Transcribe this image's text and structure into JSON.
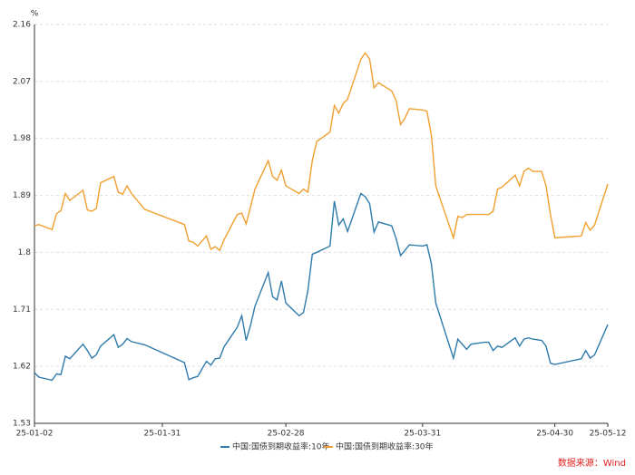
{
  "chart_data": {
    "type": "line",
    "y_label": "%",
    "source": "数据来源：Wind",
    "x": [
      "25-01-02",
      "25-01-03",
      "25-01-06",
      "25-01-07",
      "25-01-08",
      "25-01-09",
      "25-01-10",
      "25-01-13",
      "25-01-14",
      "25-01-15",
      "25-01-16",
      "25-01-17",
      "25-01-20",
      "25-01-21",
      "25-01-22",
      "25-01-23",
      "25-01-24",
      "25-01-27",
      "25-02-05",
      "25-02-06",
      "25-02-07",
      "25-02-08",
      "25-02-10",
      "25-02-11",
      "25-02-12",
      "25-02-13",
      "25-02-14",
      "25-02-17",
      "25-02-18",
      "25-02-19",
      "25-02-20",
      "25-02-21",
      "25-02-24",
      "25-02-25",
      "25-02-26",
      "25-02-27",
      "25-02-28",
      "25-03-03",
      "25-03-04",
      "25-03-05",
      "25-03-06",
      "25-03-07",
      "25-03-10",
      "25-03-11",
      "25-03-12",
      "25-03-13",
      "25-03-14",
      "25-03-17",
      "25-03-18",
      "25-03-19",
      "25-03-20",
      "25-03-21",
      "25-03-24",
      "25-03-25",
      "25-03-26",
      "25-03-27",
      "25-03-28",
      "25-03-31",
      "25-04-01",
      "25-04-02",
      "25-04-03",
      "25-04-07",
      "25-04-08",
      "25-04-09",
      "25-04-10",
      "25-04-11",
      "25-04-14",
      "25-04-15",
      "25-04-16",
      "25-04-17",
      "25-04-18",
      "25-04-21",
      "25-04-22",
      "25-04-23",
      "25-04-24",
      "25-04-25",
      "25-04-27",
      "25-04-28",
      "25-04-29",
      "25-04-30",
      "25-05-06",
      "25-05-07",
      "25-05-08",
      "25-05-09",
      "25-05-12"
    ],
    "series": [
      {
        "name": "中国:国债到期收益率:10年",
        "color": "#2e7bab",
        "values": [
          1.61,
          1.603,
          1.598,
          1.608,
          1.607,
          1.636,
          1.632,
          1.655,
          1.645,
          1.633,
          1.638,
          1.652,
          1.67,
          1.65,
          1.655,
          1.664,
          1.659,
          1.654,
          1.626,
          1.599,
          1.602,
          1.604,
          1.628,
          1.622,
          1.632,
          1.633,
          1.651,
          1.682,
          1.7,
          1.661,
          1.685,
          1.715,
          1.768,
          1.73,
          1.725,
          1.755,
          1.72,
          1.7,
          1.705,
          1.74,
          1.797,
          1.8,
          1.81,
          1.881,
          1.843,
          1.853,
          1.833,
          1.893,
          1.888,
          1.877,
          1.832,
          1.848,
          1.842,
          1.822,
          1.795,
          1.803,
          1.812,
          1.81,
          1.812,
          1.782,
          1.72,
          1.633,
          1.663,
          1.655,
          1.647,
          1.655,
          1.658,
          1.658,
          1.645,
          1.652,
          1.65,
          1.665,
          1.652,
          1.663,
          1.665,
          1.663,
          1.661,
          1.652,
          1.625,
          1.623,
          1.632,
          1.645,
          1.633,
          1.638,
          1.686
        ]
      },
      {
        "name": "中国:国债到期收益率:30年",
        "color": "#f0a030",
        "values": [
          1.842,
          1.844,
          1.836,
          1.861,
          1.866,
          1.893,
          1.882,
          1.898,
          1.867,
          1.865,
          1.869,
          1.91,
          1.92,
          1.895,
          1.892,
          1.905,
          1.893,
          1.868,
          1.844,
          1.818,
          1.816,
          1.81,
          1.826,
          1.805,
          1.809,
          1.803,
          1.82,
          1.86,
          1.862,
          1.845,
          1.872,
          1.9,
          1.945,
          1.92,
          1.914,
          1.93,
          1.905,
          1.893,
          1.9,
          1.895,
          1.945,
          1.975,
          1.99,
          2.032,
          2.02,
          2.035,
          2.042,
          2.105,
          2.115,
          2.105,
          2.06,
          2.068,
          2.055,
          2.04,
          2.002,
          2.012,
          2.027,
          2.025,
          2.023,
          1.985,
          1.905,
          1.823,
          1.857,
          1.855,
          1.86,
          1.86,
          1.86,
          1.86,
          1.865,
          1.9,
          1.903,
          1.922,
          1.905,
          1.928,
          1.933,
          1.928,
          1.928,
          1.905,
          1.86,
          1.823,
          1.826,
          1.847,
          1.835,
          1.843,
          1.908
        ]
      }
    ],
    "ylim": [
      1.53,
      2.16
    ],
    "yticks": [
      1.53,
      1.62,
      1.71,
      1.8,
      1.89,
      1.98,
      2.07,
      2.16
    ],
    "xlim": [
      "25-01-02",
      "25-05-12"
    ],
    "xticks": [
      "25-01-02",
      "25-01-31",
      "25-02-28",
      "25-03-31",
      "25-04-30",
      "25-05-12"
    ],
    "grid": true,
    "legend": "bottom"
  }
}
